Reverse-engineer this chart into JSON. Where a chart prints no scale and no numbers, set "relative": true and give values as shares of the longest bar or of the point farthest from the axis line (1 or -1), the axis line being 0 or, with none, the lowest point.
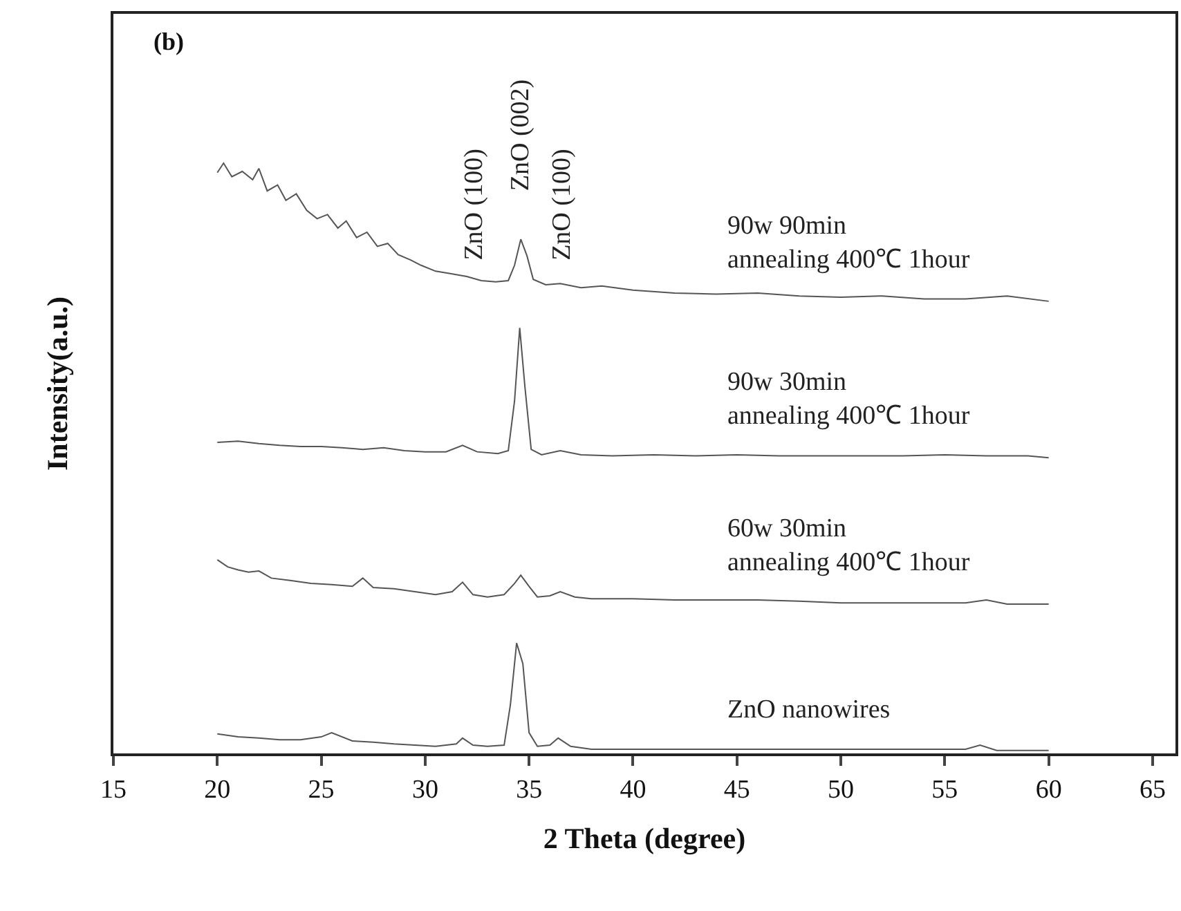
{
  "chart_data": {
    "type": "line",
    "relative": true,
    "xlabel": "2 Theta (degree)",
    "ylabel": "Intensity(a.u.)",
    "xlim": [
      15,
      66.1
    ],
    "xticks": [
      15,
      20,
      25,
      30,
      35,
      40,
      45,
      50,
      55,
      60,
      65
    ],
    "legend": false,
    "marker": "none",
    "line_style": "solid",
    "annotations": [
      "(b)",
      "ZnO (100)",
      "ZnO (002)",
      "ZnO (100)"
    ],
    "series": [
      {
        "name": "90w 90min\nannealing 400℃ 1hour",
        "color": "#555555",
        "x": [
          20.0,
          20.3,
          20.7,
          21.2,
          21.7,
          22.0,
          22.4,
          22.9,
          23.3,
          23.8,
          24.3,
          24.8,
          25.3,
          25.8,
          26.2,
          26.7,
          27.2,
          27.7,
          28.2,
          28.7,
          29.3,
          29.8,
          30.5,
          31.2,
          32.0,
          32.7,
          33.4,
          34.0,
          34.3,
          34.6,
          34.9,
          35.2,
          35.8,
          36.5,
          37.5,
          38.5,
          40,
          42,
          44,
          46,
          48,
          50,
          52,
          54,
          56,
          58,
          60
        ],
        "values": [
          0.984,
          1.0,
          0.977,
          0.986,
          0.972,
          0.991,
          0.953,
          0.963,
          0.937,
          0.948,
          0.92,
          0.906,
          0.913,
          0.89,
          0.902,
          0.874,
          0.883,
          0.859,
          0.864,
          0.845,
          0.836,
          0.827,
          0.817,
          0.813,
          0.808,
          0.801,
          0.799,
          0.801,
          0.827,
          0.871,
          0.843,
          0.803,
          0.794,
          0.796,
          0.789,
          0.792,
          0.785,
          0.78,
          0.778,
          0.78,
          0.775,
          0.773,
          0.775,
          0.77,
          0.77,
          0.775,
          0.766
        ]
      },
      {
        "name": "90w 30min\nannealing 400℃ 1hour",
        "color": "#555555",
        "x": [
          20,
          21,
          22,
          23,
          24,
          25,
          26,
          27,
          28,
          29,
          30,
          31,
          31.8,
          32.5,
          33.5,
          34.0,
          34.3,
          34.55,
          34.8,
          35.1,
          35.6,
          36.5,
          37.5,
          39,
          41,
          43,
          45,
          47,
          49,
          51,
          53,
          55,
          57,
          59,
          60
        ],
        "values": [
          0.527,
          0.529,
          0.525,
          0.522,
          0.52,
          0.52,
          0.518,
          0.515,
          0.518,
          0.513,
          0.511,
          0.511,
          0.522,
          0.511,
          0.508,
          0.513,
          0.597,
          0.721,
          0.621,
          0.515,
          0.506,
          0.513,
          0.506,
          0.504,
          0.506,
          0.504,
          0.506,
          0.504,
          0.504,
          0.504,
          0.504,
          0.506,
          0.504,
          0.504,
          0.501
        ]
      },
      {
        "name": "60w 30min\nannealing 400℃ 1hour",
        "color": "#555555",
        "x": [
          20,
          20.5,
          21,
          21.5,
          22,
          22.6,
          23.5,
          24.5,
          25.5,
          26.5,
          27,
          27.5,
          28.5,
          29.5,
          30.5,
          31.3,
          31.8,
          32.3,
          33,
          33.8,
          34.3,
          34.6,
          35.0,
          35.4,
          36.0,
          36.5,
          37.2,
          38,
          40,
          42,
          44,
          46,
          48,
          50,
          52,
          54,
          56,
          57,
          58,
          60
        ],
        "values": [
          0.328,
          0.316,
          0.311,
          0.307,
          0.309,
          0.297,
          0.293,
          0.288,
          0.286,
          0.283,
          0.297,
          0.281,
          0.279,
          0.274,
          0.269,
          0.274,
          0.29,
          0.269,
          0.265,
          0.269,
          0.288,
          0.302,
          0.283,
          0.265,
          0.267,
          0.274,
          0.265,
          0.262,
          0.262,
          0.26,
          0.26,
          0.26,
          0.258,
          0.255,
          0.255,
          0.255,
          0.255,
          0.26,
          0.253,
          0.253
        ]
      },
      {
        "name": "ZnO nanowires",
        "color": "#555555",
        "x": [
          20,
          21,
          22,
          23,
          24,
          25,
          25.5,
          26.5,
          27.5,
          28.5,
          29.5,
          30.5,
          31.5,
          31.8,
          32.3,
          33,
          33.8,
          34.1,
          34.4,
          34.7,
          35.0,
          35.4,
          36.0,
          36.4,
          37,
          38,
          40,
          42,
          44,
          46,
          48,
          50,
          52,
          54,
          56,
          56.7,
          57.5,
          60
        ],
        "values": [
          0.033,
          0.028,
          0.026,
          0.023,
          0.023,
          0.028,
          0.035,
          0.021,
          0.019,
          0.016,
          0.014,
          0.012,
          0.016,
          0.026,
          0.014,
          0.012,
          0.014,
          0.082,
          0.187,
          0.152,
          0.035,
          0.012,
          0.014,
          0.026,
          0.012,
          0.007,
          0.007,
          0.007,
          0.007,
          0.007,
          0.007,
          0.007,
          0.007,
          0.007,
          0.007,
          0.014,
          0.005,
          0.005
        ]
      }
    ]
  }
}
